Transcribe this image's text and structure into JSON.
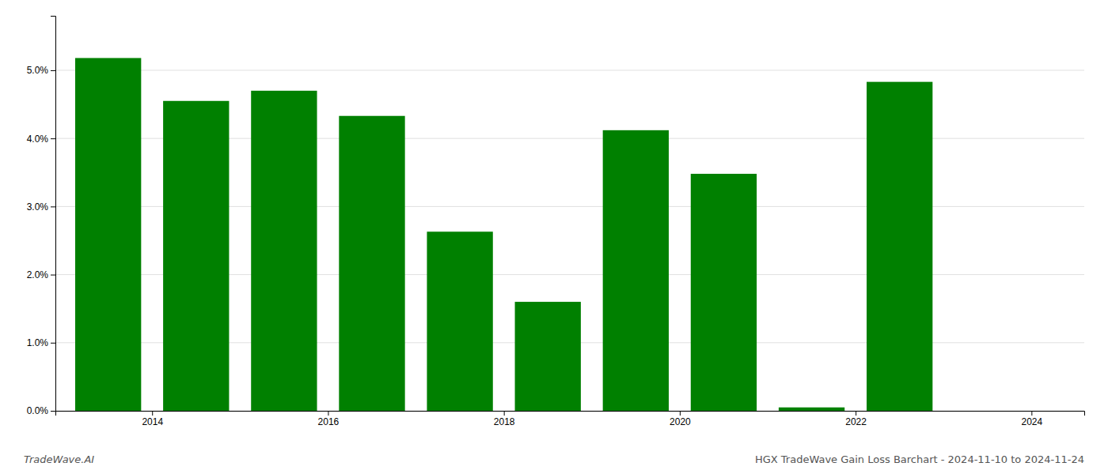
{
  "chart_data": {
    "type": "bar",
    "title": "HGX TradeWave Gain Loss Barchart - 2024-11-10 to 2024-11-24",
    "annotations": [
      "TradeWave.AI"
    ],
    "x": [
      2014,
      2015,
      2016,
      2017,
      2018,
      2019,
      2020,
      2021,
      2022,
      2023,
      2024
    ],
    "values": [
      0.0518,
      0.0455,
      0.047,
      0.0433,
      0.0263,
      0.016,
      0.0412,
      0.0348,
      0.0005,
      0.0483,
      0.0
    ],
    "color": "#008000",
    "xlim": [
      2013.4,
      2025.1
    ],
    "xticks": [
      {
        "value": 2014.5,
        "label": "2014"
      },
      {
        "value": 2016.5,
        "label": "2016"
      },
      {
        "value": 2018.5,
        "label": "2018"
      },
      {
        "value": 2020.5,
        "label": "2020"
      },
      {
        "value": 2022.5,
        "label": "2022"
      },
      {
        "value": 2024.5,
        "label": "2024"
      }
    ],
    "ylim": [
      0,
      0.058
    ],
    "yticks": [
      {
        "value": 0.0,
        "label": "0.0%"
      },
      {
        "value": 0.01,
        "label": "1.0%"
      },
      {
        "value": 0.02,
        "label": "2.0%"
      },
      {
        "value": 0.03,
        "label": "3.0%"
      },
      {
        "value": 0.04,
        "label": "4.0%"
      },
      {
        "value": 0.05,
        "label": "5.0%"
      }
    ],
    "grid": true
  }
}
